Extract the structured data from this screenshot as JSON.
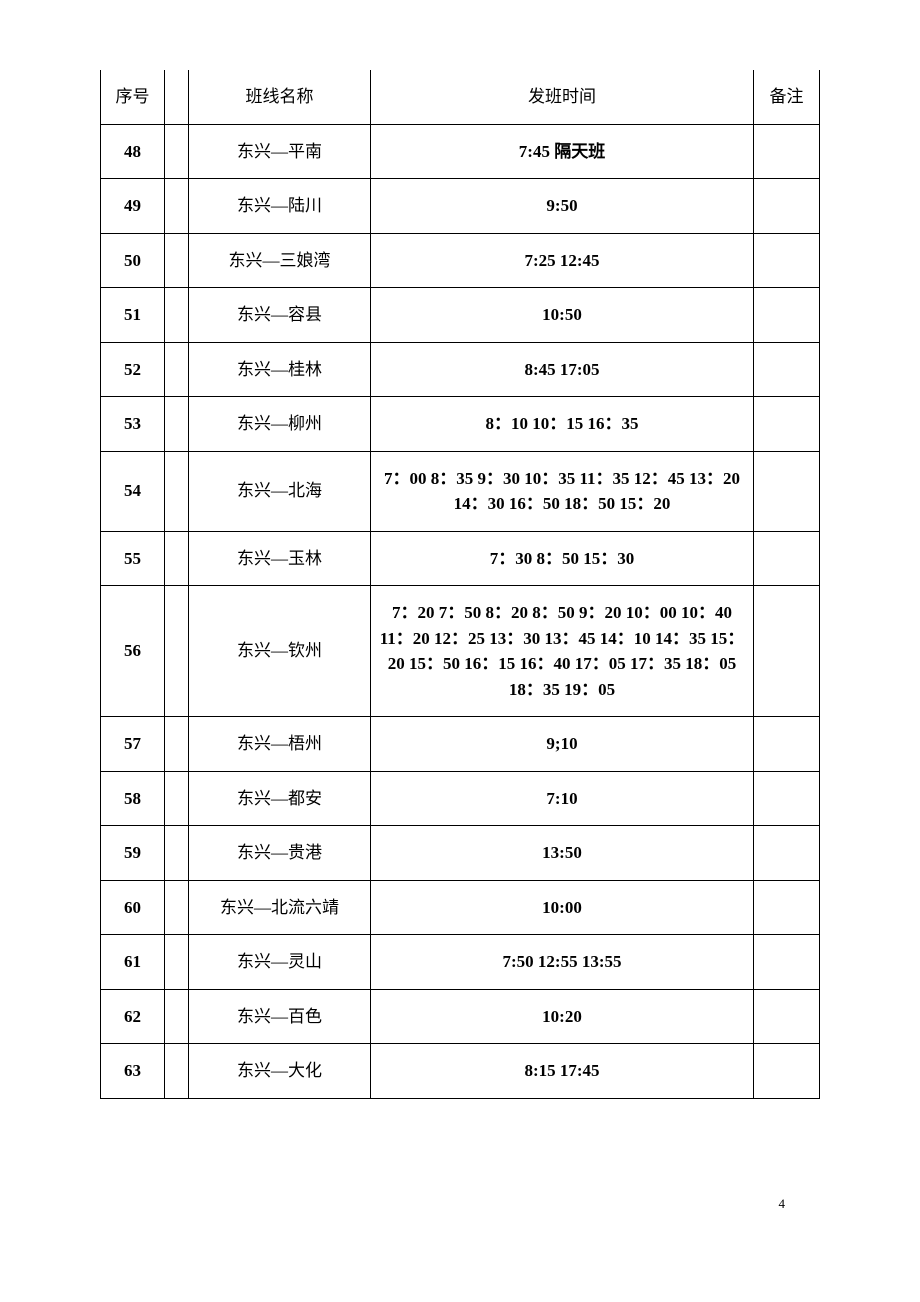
{
  "table": {
    "columns": [
      "序号",
      "",
      "班线名称",
      "发班时间",
      "备注"
    ],
    "rows": [
      {
        "seq": "48",
        "route": "东兴—平南",
        "time": "7:45 隔天班",
        "note": ""
      },
      {
        "seq": "49",
        "route": "东兴—陆川",
        "time": "9:50",
        "note": ""
      },
      {
        "seq": "50",
        "route": "东兴—三娘湾",
        "time": "7:25 12:45",
        "note": ""
      },
      {
        "seq": "51",
        "route": "东兴—容县",
        "time": "10:50",
        "note": ""
      },
      {
        "seq": "52",
        "route": "东兴—桂林",
        "time": "8:45  17:05",
        "note": ""
      },
      {
        "seq": "53",
        "route": "东兴—柳州",
        "time": "8：10 10：15 16：35",
        "note": ""
      },
      {
        "seq": "54",
        "route": "东兴—北海",
        "time": "7：00 8：35 9：30 10：35 11：35 12：45 13：20 14：30 16：50 18：50 15：20",
        "note": ""
      },
      {
        "seq": "55",
        "route": "东兴—玉林",
        "time": "7：30 8：50 15：30",
        "note": ""
      },
      {
        "seq": "56",
        "route": "东兴—钦州",
        "time": "7：20 7：50 8：20 8：50 9：20 10：00 10：40 11：20 12：25 13：30 13：45 14：10 14：35 15：20 15：50 16：15 16：40 17：05 17：35 18：05 18：35 19：05",
        "note": ""
      },
      {
        "seq": "57",
        "route": "东兴—梧州",
        "time": "9;10",
        "note": ""
      },
      {
        "seq": "58",
        "route": "东兴—都安",
        "time": "7:10",
        "note": ""
      },
      {
        "seq": "59",
        "route": "东兴—贵港",
        "time": "13:50",
        "note": ""
      },
      {
        "seq": "60",
        "route": "东兴—北流六靖",
        "time": "10:00",
        "note": ""
      },
      {
        "seq": "61",
        "route": "东兴—灵山",
        "time": "7:50  12:55  13:55",
        "note": ""
      },
      {
        "seq": "62",
        "route": "东兴—百色",
        "time": "10:20",
        "note": ""
      },
      {
        "seq": "63",
        "route": "东兴—大化",
        "time": "8:15  17:45",
        "note": ""
      }
    ],
    "border_color": "#000000",
    "font_size": 17,
    "header_font_weight": "normal",
    "data_font_weight": "bold",
    "background_color": "#ffffff"
  },
  "page_number": "4"
}
